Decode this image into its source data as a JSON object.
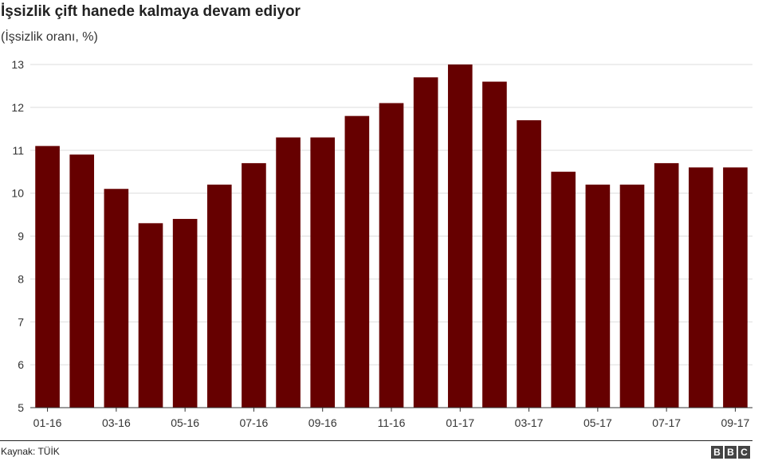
{
  "title": "İşsizlik çift hanede kalmaya devam ediyor",
  "subtitle": "(İşsizlik oranı, %)",
  "source": "Kaynak: TÜİK",
  "logo_letters": [
    "B",
    "B",
    "C"
  ],
  "colors": {
    "bar": "#660000",
    "grid": "#dddddd",
    "axis": "#333333"
  },
  "chart_data": {
    "type": "bar",
    "title": "İşsizlik çift hanede kalmaya devam ediyor",
    "subtitle": "(İşsizlik oranı, %)",
    "categories": [
      "01-16",
      "02-16",
      "03-16",
      "04-16",
      "05-16",
      "06-16",
      "07-16",
      "08-16",
      "09-16",
      "10-16",
      "11-16",
      "12-16",
      "01-17",
      "02-17",
      "03-17",
      "04-17",
      "05-17",
      "06-17",
      "07-17",
      "08-17",
      "09-17"
    ],
    "values": [
      11.1,
      10.9,
      10.1,
      9.3,
      9.4,
      10.2,
      10.7,
      11.3,
      11.3,
      11.8,
      12.1,
      12.7,
      13.0,
      12.6,
      11.7,
      10.5,
      10.2,
      10.2,
      10.7,
      10.6,
      10.6
    ],
    "x_tick_labels": [
      "01-16",
      "03-16",
      "05-16",
      "07-16",
      "09-16",
      "11-16",
      "01-17",
      "03-17",
      "05-17",
      "07-17",
      "09-17"
    ],
    "ylim": [
      5,
      13
    ],
    "yticks": [
      5,
      6,
      7,
      8,
      9,
      10,
      11,
      12,
      13
    ],
    "grid": true,
    "xlabel": "",
    "ylabel": ""
  }
}
